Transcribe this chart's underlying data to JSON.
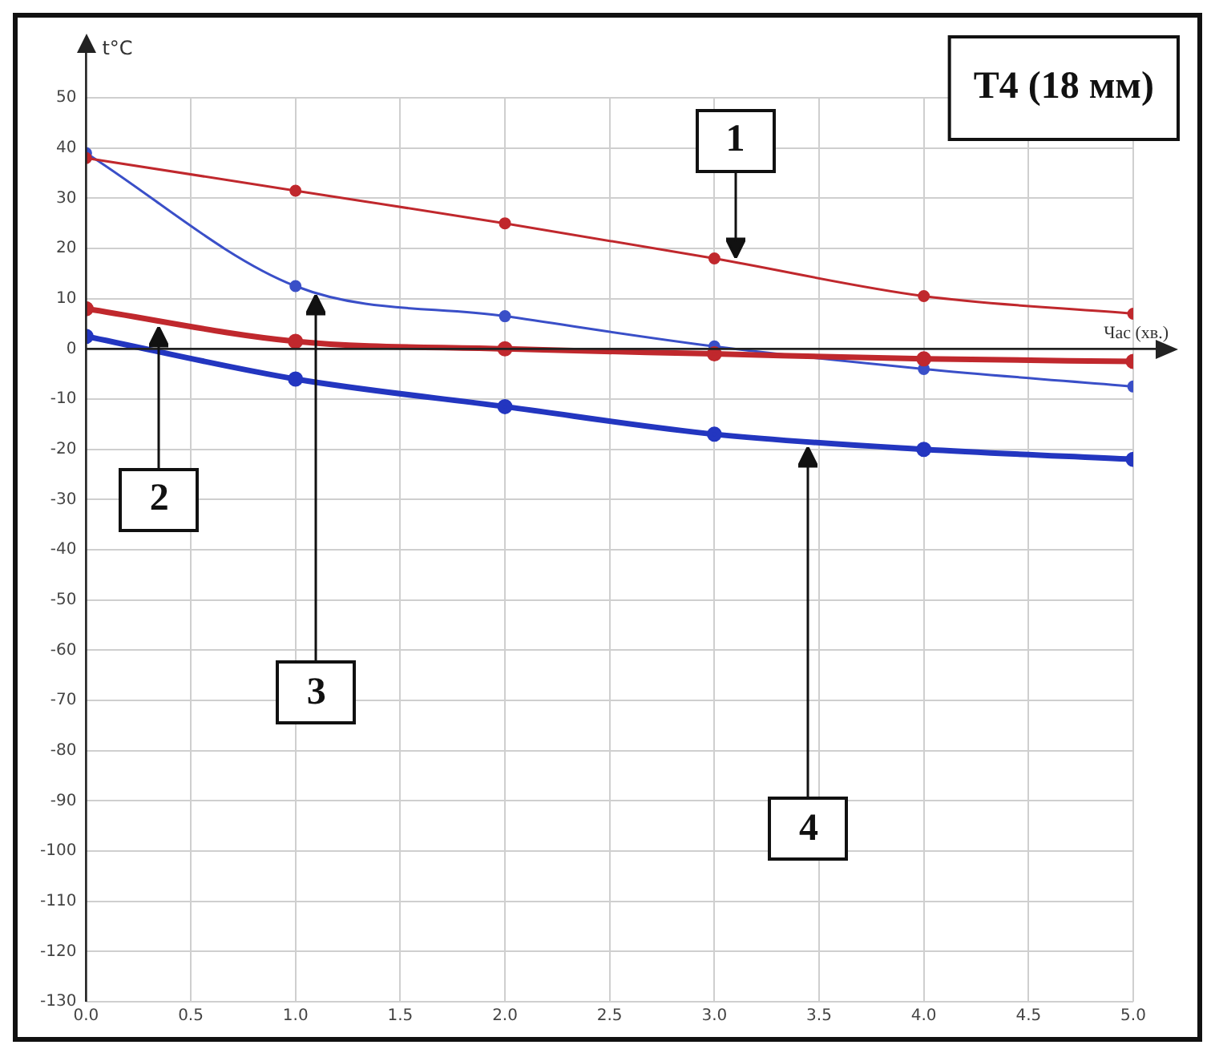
{
  "chart_data": {
    "type": "line",
    "title": "T4 (18 мм)",
    "xlabel": "Час (хв.)",
    "ylabel": "t°C",
    "x": [
      0,
      1,
      2,
      3,
      4,
      5
    ],
    "series": [
      {
        "name": "1",
        "color": "#c0282d",
        "values": [
          38,
          31.5,
          25,
          18,
          10.5,
          7
        ]
      },
      {
        "name": "2",
        "color": "#c0282d",
        "values": [
          8,
          1.5,
          0,
          -1,
          -2,
          -2.5
        ]
      },
      {
        "name": "3",
        "color": "#3a4fc8",
        "values": [
          39,
          12.5,
          6.5,
          0.5,
          -4,
          -7.5
        ]
      },
      {
        "name": "4",
        "color": "#2336c0",
        "values": [
          2.5,
          -6,
          -11.5,
          -17,
          -20,
          -22
        ]
      }
    ],
    "xlim": [
      0,
      5
    ],
    "xticks": [
      {
        "value": 0,
        "label": "0.0"
      },
      {
        "value": 0.5,
        "label": "0.5"
      },
      {
        "value": 1,
        "label": "1.0"
      },
      {
        "value": 1.5,
        "label": "1.5"
      },
      {
        "value": 2,
        "label": "2.0"
      },
      {
        "value": 2.5,
        "label": "2.5"
      },
      {
        "value": 3,
        "label": "3.0"
      },
      {
        "value": 3.5,
        "label": "3.5"
      },
      {
        "value": 4,
        "label": "4.0"
      },
      {
        "value": 4.5,
        "label": "4.5"
      },
      {
        "value": 5,
        "label": "5.0"
      }
    ],
    "ylim": [
      -130,
      50
    ],
    "yticks": [
      -130,
      -120,
      -110,
      -100,
      -90,
      -80,
      -70,
      -60,
      -50,
      -40,
      -30,
      -20,
      -10,
      0,
      10,
      20,
      30,
      40,
      50
    ],
    "grid": true,
    "marker": "circle",
    "line_style": "solid",
    "legend": false
  }
}
